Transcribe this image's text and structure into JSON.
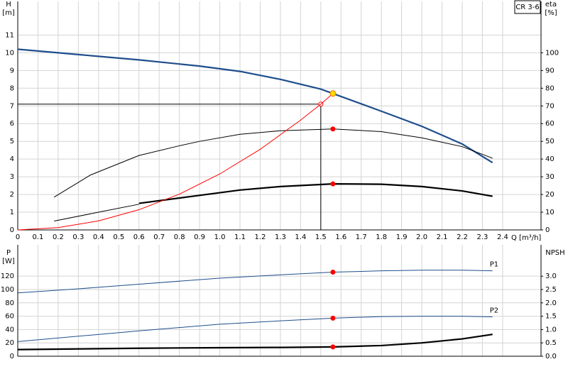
{
  "chart_data": [
    {
      "type": "line",
      "label_top": "CR 3-6",
      "y_label": "H",
      "y_unit": "[m]",
      "y2_label": "eta",
      "y2_unit": "[%]",
      "x_label": "Q [m³/h]",
      "xlim": [
        0,
        2.59
      ],
      "ylim": [
        0,
        12.9
      ],
      "y2lim": [
        0,
        129
      ],
      "grid": true,
      "xticks": [
        0,
        0.1,
        0.2,
        0.3,
        0.4,
        0.5,
        0.6,
        0.7,
        0.8,
        0.9,
        {
          "value": 1,
          "label": "1.0"
        },
        1.1,
        1.2,
        1.3,
        1.4,
        1.5,
        1.6,
        1.7,
        1.8,
        1.9,
        {
          "value": 2,
          "label": "2.0"
        },
        2.1,
        2.2,
        2.3,
        2.4
      ],
      "yticks": [
        0,
        1,
        2,
        3,
        4,
        5,
        6,
        7,
        8,
        9,
        10,
        11
      ],
      "y2ticks": [
        0,
        10,
        20,
        30,
        40,
        50,
        60,
        70,
        80,
        90,
        100
      ],
      "series": [
        {
          "color": "#1f4e8c",
          "weight": "bold",
          "x": [
            0,
            0.3,
            0.6,
            0.9,
            1.1,
            1.3,
            1.5,
            1.56,
            1.8,
            2.0,
            2.2,
            2.35
          ],
          "values": [
            10.2,
            9.9,
            9.6,
            9.25,
            8.95,
            8.5,
            7.95,
            7.7,
            6.7,
            5.85,
            4.85,
            3.8
          ]
        },
        {
          "color": "#000000",
          "weight": "normal",
          "axis": "y2",
          "x": [
            0.18,
            0.36,
            0.6,
            0.8,
            0.9,
            1.1,
            1.3,
            1.56,
            1.8,
            2.0,
            2.2,
            2.35
          ],
          "values": [
            18.5,
            31,
            42,
            47.5,
            50,
            54,
            56,
            57,
            55.5,
            52,
            47,
            40.5
          ]
        },
        {
          "color": "#000000",
          "weight": "normal",
          "axis": "y2",
          "x": [
            0.18,
            0.4,
            0.6
          ],
          "values": [
            5,
            10,
            14.5
          ]
        },
        {
          "color": "#000000",
          "weight": "bold",
          "axis": "y2",
          "x": [
            0.6,
            0.9,
            1.1,
            1.3,
            1.56,
            1.8,
            2.0,
            2.2,
            2.35
          ],
          "values": [
            15,
            19.5,
            22.5,
            24.5,
            26,
            25.8,
            24.5,
            22,
            19
          ]
        },
        {
          "color": "#ff0000",
          "weight": "normal",
          "x": [
            0,
            0.2,
            0.4,
            0.6,
            0.8,
            1.0,
            1.2,
            1.4,
            1.5,
            1.56
          ],
          "values": [
            0,
            0.13,
            0.51,
            1.14,
            2.02,
            3.16,
            4.55,
            6.2,
            7.1,
            7.7
          ]
        }
      ],
      "duty_point": {
        "x": 1.5,
        "y": 7.1
      },
      "points": [
        {
          "x": 1.56,
          "y": 7.7,
          "color": "#ffd700"
        },
        {
          "x": 1.56,
          "y": 5.7,
          "color": "#ff0000"
        },
        {
          "x": 1.56,
          "y": 2.6,
          "color": "#ff0000"
        }
      ]
    },
    {
      "type": "line",
      "y_label": "P",
      "y_unit": "[W]",
      "y2_label": "NPSH",
      "xlim": [
        0,
        2.59
      ],
      "ylim": [
        0,
        167
      ],
      "y2lim": [
        0,
        4.175
      ],
      "grid": true,
      "xticks": [
        0,
        0.1,
        0.2,
        0.3,
        0.4,
        0.5,
        0.6,
        0.7,
        0.8,
        0.9,
        1,
        1.1,
        1.2,
        1.3,
        1.4,
        1.5,
        1.6,
        1.7,
        1.8,
        1.9,
        2,
        2.1,
        2.2,
        2.3,
        2.4
      ],
      "yticks": [
        0,
        20,
        40,
        60,
        80,
        100,
        120
      ],
      "y2ticks": [
        {
          "value": 0,
          "label": "0.0"
        },
        0.5,
        {
          "value": 1,
          "label": "1.0"
        },
        1.5,
        {
          "value": 2,
          "label": "2.0"
        },
        2.5,
        {
          "value": 3,
          "label": "3.0"
        }
      ],
      "series": [
        {
          "name": "P1",
          "color": "#1f4e8c",
          "weight": "normal",
          "x": [
            0,
            0.3,
            0.6,
            1.0,
            1.3,
            1.56,
            1.8,
            2.0,
            2.2,
            2.35
          ],
          "values": [
            95,
            101,
            108,
            117,
            122,
            126,
            128,
            129,
            129,
            128
          ]
        },
        {
          "name": "P2",
          "color": "#1f4e8c",
          "weight": "normal",
          "x": [
            0,
            0.3,
            0.6,
            1.0,
            1.3,
            1.56,
            1.8,
            2.0,
            2.2,
            2.35
          ],
          "values": [
            22,
            30,
            38,
            48,
            53,
            57,
            59.5,
            60,
            60,
            59
          ]
        },
        {
          "color": "#000000",
          "weight": "bold",
          "axis": "y2",
          "x": [
            0,
            0.6,
            1.0,
            1.3,
            1.56,
            1.8,
            2.0,
            2.2,
            2.35
          ],
          "values": [
            0.25,
            0.3,
            0.32,
            0.33,
            0.35,
            0.4,
            0.5,
            0.65,
            0.82
          ]
        }
      ],
      "points": [
        {
          "x": 1.56,
          "y": 126,
          "color": "#ff0000"
        },
        {
          "x": 1.56,
          "y": 57,
          "color": "#ff0000"
        },
        {
          "x": 1.56,
          "y": 14,
          "color": "#ff0000"
        }
      ]
    }
  ]
}
